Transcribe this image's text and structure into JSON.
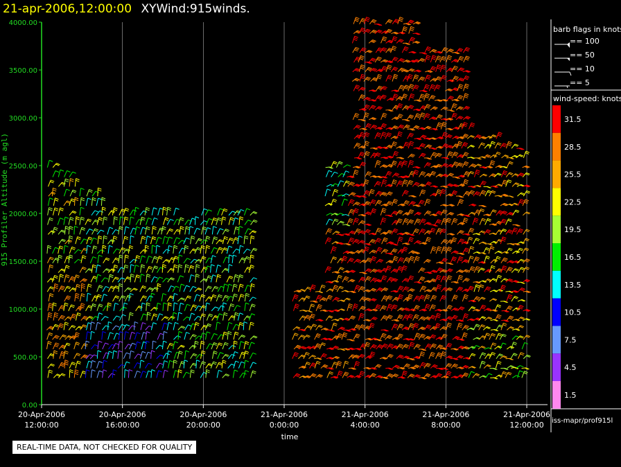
{
  "header": {
    "date_time": "21-apr-2006,12:00:00",
    "title": "XYWind:915winds."
  },
  "colors": {
    "axis": "#22dd22",
    "background": "#000000",
    "grid": "#ffffff"
  },
  "legend": {
    "barb_title": "barb flags in knots",
    "barb_items": [
      "== 100",
      "== 50",
      "== 10",
      "== 5"
    ],
    "speed_title": "wind-speed: knots",
    "speed_scale": [
      {
        "label": "31.5",
        "color": "#ff0000"
      },
      {
        "label": "28.5",
        "color": "#ff8000"
      },
      {
        "label": "25.5",
        "color": "#ffaa00"
      },
      {
        "label": "22.5",
        "color": "#ffff00"
      },
      {
        "label": "19.5",
        "color": "#a6ff33"
      },
      {
        "label": "16.5",
        "color": "#00ee00"
      },
      {
        "label": "13.5",
        "color": "#00ffff"
      },
      {
        "label": "10.5",
        "color": "#0000ff"
      },
      {
        "label": "7.5",
        "color": "#6699ff"
      },
      {
        "label": "4.5",
        "color": "#9933ff"
      },
      {
        "label": "1.5",
        "color": "#ff88ee"
      }
    ],
    "source": "iss-mapr/prof915l"
  },
  "footer": {
    "quality_note": "REAL-TIME DATA, NOT CHECKED FOR QUALITY"
  },
  "chart_data": {
    "type": "scatter",
    "title": "XYWind:915winds.",
    "xlabel": "time",
    "ylabel": "915 Profiler Altitude (m agl)",
    "ylim": [
      0,
      4000
    ],
    "xlim_hours": [
      0,
      24
    ],
    "yticks": [
      "0.00",
      "500.00",
      "1000.00",
      "1500.00",
      "2000.00",
      "2500.00",
      "3000.00",
      "3500.00",
      "4000.00"
    ],
    "xticks": [
      {
        "date": "20-Apr-2006",
        "time": "12:00:00"
      },
      {
        "date": "20-Apr-2006",
        "time": "16:00:00"
      },
      {
        "date": "20-Apr-2006",
        "time": "20:00:00"
      },
      {
        "date": "21-Apr-2006",
        "time": "0:00:00"
      },
      {
        "date": "21-Apr-2006",
        "time": "4:00:00"
      },
      {
        "date": "21-Apr-2006",
        "time": "8:00:00"
      },
      {
        "date": "21-Apr-2006",
        "time": "12:00:00"
      }
    ],
    "grid": "vertical",
    "series_top_altitude_m": [
      {
        "period": "20-Apr 12:00-16:00",
        "top": 2600
      },
      {
        "period": "20-Apr 16:00-22:00",
        "top": 2000
      },
      {
        "period": "21-Apr 00:40-02:30",
        "top": 1200
      },
      {
        "period": "21-Apr 03:00-04:30",
        "top": 2500
      },
      {
        "period": "21-Apr 04:30-07:00",
        "top": 4000
      },
      {
        "period": "21-Apr 07:00-10:00",
        "top": 3700
      },
      {
        "period": "21-Apr 10:00-12:00",
        "top": 2700
      }
    ],
    "color_scale_knots": [
      1.5,
      4.5,
      7.5,
      10.5,
      13.5,
      16.5,
      19.5,
      22.5,
      25.5,
      28.5,
      31.5
    ]
  }
}
